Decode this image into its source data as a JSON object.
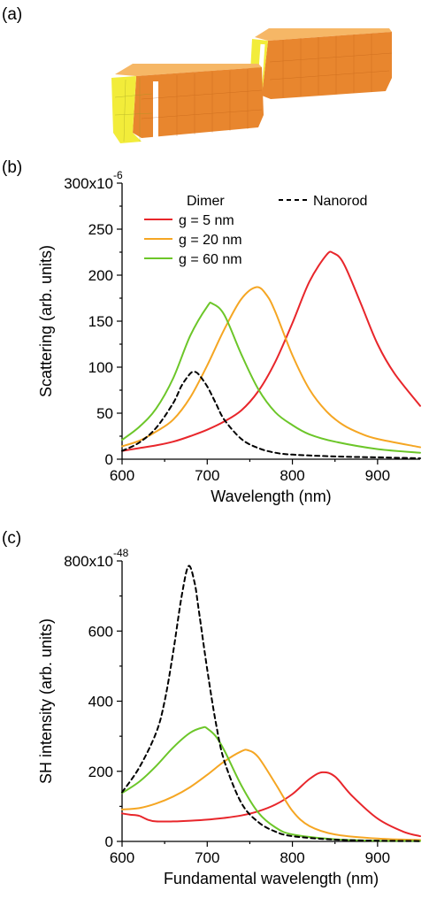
{
  "panels": {
    "a_label": "(a)",
    "b_label": "(b)",
    "c_label": "(c)"
  },
  "colors": {
    "g5": "#e8262b",
    "g20": "#f5a623",
    "g60": "#6cc629",
    "nanorod": "#000000",
    "rod_side": "#e8862e",
    "rod_end": "#f2ec3a"
  },
  "chart_data": [
    {
      "type": "line",
      "panel": "(b)",
      "xlabel": "Wavelength (nm)",
      "ylabel": "Scattering (arb. units)",
      "y_top_label": "300x10",
      "y_exponent": "-6",
      "xlim": [
        600,
        950
      ],
      "ylim": [
        0,
        300
      ],
      "xticks": [
        "600",
        "700",
        "800",
        "900"
      ],
      "yticks": [
        "0",
        "50",
        "100",
        "150",
        "200",
        "250"
      ],
      "legend_title": "Dimer",
      "legend_position": "top",
      "series": [
        {
          "name": "g = 5 nm",
          "color_key": "g5",
          "style": "solid",
          "x": [
            600,
            620,
            640,
            660,
            680,
            700,
            720,
            740,
            760,
            780,
            800,
            820,
            840,
            848,
            860,
            880,
            900,
            920,
            950
          ],
          "y": [
            9,
            12,
            15,
            19,
            25,
            32,
            41,
            53,
            74,
            106,
            148,
            193,
            222,
            224,
            213,
            170,
            125,
            93,
            58
          ]
        },
        {
          "name": "g = 20 nm",
          "color_key": "g20",
          "style": "solid",
          "x": [
            600,
            620,
            640,
            660,
            680,
            700,
            720,
            740,
            758,
            770,
            780,
            800,
            820,
            840,
            860,
            880,
            900,
            950
          ],
          "y": [
            14,
            20,
            30,
            43,
            67,
            102,
            141,
            174,
            187,
            178,
            160,
            113,
            76,
            52,
            37,
            28,
            22,
            13
          ]
        },
        {
          "name": "g = 60 nm",
          "color_key": "g60",
          "style": "solid",
          "x": [
            600,
            620,
            640,
            660,
            680,
            700,
            706,
            720,
            740,
            760,
            780,
            800,
            820,
            850,
            900,
            950
          ],
          "y": [
            21,
            35,
            55,
            88,
            134,
            166,
            169,
            157,
            114,
            76,
            51,
            37,
            27,
            19,
            11,
            7
          ]
        },
        {
          "name": "Nanorod",
          "color_key": "nanorod",
          "style": "dashed",
          "x": [
            600,
            620,
            640,
            660,
            670,
            680,
            685,
            690,
            700,
            710,
            720,
            740,
            760,
            780,
            800,
            850,
            900,
            950
          ],
          "y": [
            9,
            18,
            34,
            61,
            80,
            93,
            95,
            92,
            79,
            61,
            43,
            22,
            12,
            7,
            5,
            3,
            2,
            1
          ]
        }
      ]
    },
    {
      "type": "line",
      "panel": "(c)",
      "xlabel": "Fundamental wavelength (nm)",
      "ylabel": "SH intensity (arb. units)",
      "y_top_label": "800x10",
      "y_exponent": "-48",
      "xlim": [
        600,
        950
      ],
      "ylim": [
        0,
        800
      ],
      "xticks": [
        "600",
        "700",
        "800",
        "900"
      ],
      "yticks": [
        "0",
        "200",
        "400",
        "600"
      ],
      "series": [
        {
          "name": "g = 5 nm",
          "color_key": "g5",
          "style": "solid",
          "x": [
            600,
            610,
            620,
            630,
            640,
            660,
            680,
            700,
            720,
            740,
            760,
            780,
            800,
            820,
            835,
            850,
            870,
            900,
            930,
            950
          ],
          "y": [
            80,
            76,
            73,
            62,
            57,
            57,
            59,
            62,
            67,
            74,
            86,
            105,
            135,
            178,
            197,
            185,
            130,
            65,
            28,
            15
          ]
        },
        {
          "name": "g = 20 nm",
          "color_key": "g20",
          "style": "solid",
          "x": [
            600,
            620,
            640,
            660,
            680,
            700,
            720,
            740,
            748,
            760,
            780,
            800,
            820,
            850,
            900,
            950
          ],
          "y": [
            91,
            95,
            108,
            128,
            155,
            190,
            228,
            257,
            260,
            240,
            165,
            87,
            44,
            20,
            8,
            4
          ]
        },
        {
          "name": "g = 60 nm",
          "color_key": "g60",
          "style": "solid",
          "x": [
            600,
            620,
            640,
            660,
            680,
            695,
            700,
            710,
            720,
            740,
            760,
            780,
            800,
            850,
            900,
            950
          ],
          "y": [
            138,
            170,
            215,
            268,
            310,
            325,
            322,
            300,
            260,
            160,
            82,
            40,
            20,
            6,
            2,
            1
          ]
        },
        {
          "name": "Nanorod",
          "color_key": "nanorod",
          "style": "dashed",
          "x": [
            600,
            620,
            640,
            650,
            660,
            670,
            678,
            685,
            690,
            700,
            710,
            720,
            740,
            760,
            780,
            800,
            850,
            900,
            950
          ],
          "y": [
            140,
            210,
            310,
            400,
            540,
            700,
            785,
            740,
            660,
            490,
            340,
            230,
            110,
            55,
            28,
            15,
            5,
            2,
            1
          ]
        }
      ]
    }
  ]
}
